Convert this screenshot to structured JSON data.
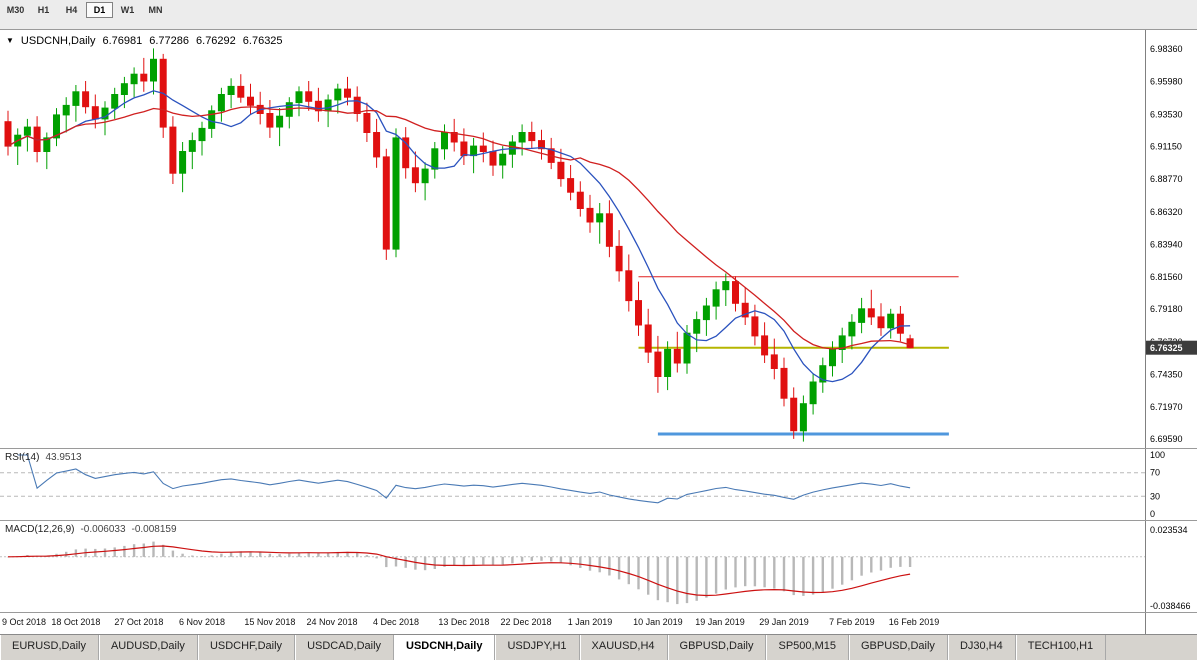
{
  "toolbar": {
    "timeframes": [
      {
        "label": "M30",
        "active": false
      },
      {
        "label": "H1",
        "active": false
      },
      {
        "label": "H4",
        "active": false
      },
      {
        "label": "D1",
        "active": true
      },
      {
        "label": "W1",
        "active": false
      },
      {
        "label": "MN",
        "active": false
      }
    ]
  },
  "chart": {
    "title_symbol": "USDCNH,Daily",
    "ohlc": {
      "open": "6.76981",
      "high": "6.77286",
      "low": "6.76292",
      "close": "6.76325"
    },
    "price_badge": "6.76325",
    "badge_price": 6.76325,
    "ylim": [
      6.6893,
      6.9976
    ],
    "bar_spacing": 9.7,
    "first_x": 8,
    "price_axis_labels": [
      "6.98360",
      "6.95980",
      "6.93530",
      "6.91150",
      "6.88770",
      "6.86320",
      "6.83940",
      "6.81560",
      "6.79180",
      "6.76730",
      "6.74350",
      "6.71970",
      "6.69590"
    ],
    "time_labels": [
      {
        "label": "9 Oct 2018",
        "i": 0
      },
      {
        "label": "18 Oct 2018",
        "i": 7
      },
      {
        "label": "27 Oct 2018",
        "i": 13.5
      },
      {
        "label": "6 Nov 2018",
        "i": 20
      },
      {
        "label": "15 Nov 2018",
        "i": 27
      },
      {
        "label": "24 Nov 2018",
        "i": 33.4
      },
      {
        "label": "4 Dec 2018",
        "i": 40
      },
      {
        "label": "13 Dec 2018",
        "i": 47
      },
      {
        "label": "22 Dec 2018",
        "i": 53.4
      },
      {
        "label": "1 Jan 2019",
        "i": 60
      },
      {
        "label": "10 Jan 2019",
        "i": 67
      },
      {
        "label": "19 Jan 2019",
        "i": 73.4
      },
      {
        "label": "29 Jan 2019",
        "i": 80
      },
      {
        "label": "7 Feb 2019",
        "i": 87
      },
      {
        "label": "16 Feb 2019",
        "i": 93.4
      }
    ],
    "colors": {
      "up": "#00a000",
      "down": "#e01010",
      "ma_fast": "#2a52be",
      "ma_slow": "#d02020",
      "badge_bg": "#3c3c3c",
      "badge_text": "#ffffff"
    },
    "drawn_lines": [
      {
        "name": "resistance-line-red",
        "price": 6.8156,
        "from": 65,
        "to": 98,
        "color": "#e02020",
        "width": 1
      },
      {
        "name": "support-line-yellow",
        "price": 6.7632,
        "from": 65,
        "to": 97,
        "color": "#b5b500",
        "width": 2
      },
      {
        "name": "support-line-blue",
        "price": 6.6996,
        "from": 67,
        "to": 97,
        "color": "#4f97dd",
        "width": 3
      }
    ]
  },
  "chart_data": {
    "type": "candlestick",
    "symbol": "USDCNH",
    "timeframe": "Daily",
    "title": "USDCNH,Daily",
    "ylim": [
      6.6893,
      6.9976
    ],
    "ohlc_format": [
      "open",
      "high",
      "low",
      "close"
    ],
    "moving_averages": [
      {
        "period": 8,
        "color_key": "ma_fast"
      },
      {
        "period": 20,
        "color_key": "ma_slow"
      }
    ],
    "candles": [
      [
        6.93,
        6.938,
        6.905,
        6.912
      ],
      [
        6.912,
        6.925,
        6.898,
        6.92
      ],
      [
        6.92,
        6.932,
        6.908,
        6.926
      ],
      [
        6.926,
        6.934,
        6.9,
        6.908
      ],
      [
        6.908,
        6.922,
        6.895,
        6.918
      ],
      [
        6.918,
        6.94,
        6.912,
        6.935
      ],
      [
        6.935,
        6.948,
        6.922,
        6.942
      ],
      [
        6.942,
        6.957,
        6.93,
        6.952
      ],
      [
        6.952,
        6.96,
        6.936,
        6.941
      ],
      [
        6.941,
        6.95,
        6.925,
        6.932
      ],
      [
        6.932,
        6.945,
        6.92,
        6.94
      ],
      [
        6.94,
        6.955,
        6.932,
        6.95
      ],
      [
        6.95,
        6.963,
        6.94,
        6.958
      ],
      [
        6.958,
        6.97,
        6.948,
        6.965
      ],
      [
        6.965,
        6.977,
        6.952,
        6.96
      ],
      [
        6.96,
        6.984,
        6.95,
        6.976
      ],
      [
        6.976,
        6.98,
        6.918,
        6.926
      ],
      [
        6.926,
        6.934,
        6.884,
        6.892
      ],
      [
        6.892,
        6.915,
        6.878,
        6.908
      ],
      [
        6.908,
        6.922,
        6.895,
        6.916
      ],
      [
        6.916,
        6.93,
        6.905,
        6.925
      ],
      [
        6.925,
        6.942,
        6.918,
        6.938
      ],
      [
        6.938,
        6.955,
        6.93,
        6.95
      ],
      [
        6.95,
        6.962,
        6.94,
        6.956
      ],
      [
        6.956,
        6.965,
        6.944,
        6.948
      ],
      [
        6.948,
        6.958,
        6.935,
        6.942
      ],
      [
        6.942,
        6.952,
        6.928,
        6.936
      ],
      [
        6.936,
        6.946,
        6.918,
        6.926
      ],
      [
        6.926,
        6.94,
        6.912,
        6.934
      ],
      [
        6.934,
        6.948,
        6.925,
        6.944
      ],
      [
        6.944,
        6.956,
        6.934,
        6.952
      ],
      [
        6.952,
        6.96,
        6.938,
        6.945
      ],
      [
        6.945,
        6.955,
        6.93,
        6.938
      ],
      [
        6.938,
        6.95,
        6.926,
        6.946
      ],
      [
        6.946,
        6.958,
        6.936,
        6.954
      ],
      [
        6.954,
        6.963,
        6.942,
        6.948
      ],
      [
        6.948,
        6.956,
        6.93,
        6.936
      ],
      [
        6.936,
        6.944,
        6.915,
        6.922
      ],
      [
        6.922,
        6.932,
        6.896,
        6.904
      ],
      [
        6.904,
        6.91,
        6.828,
        6.836
      ],
      [
        6.836,
        6.925,
        6.83,
        6.918
      ],
      [
        6.918,
        6.926,
        6.888,
        6.896
      ],
      [
        6.896,
        6.908,
        6.878,
        6.885
      ],
      [
        6.885,
        6.9,
        6.872,
        6.895
      ],
      [
        6.895,
        6.915,
        6.888,
        6.91
      ],
      [
        6.91,
        6.928,
        6.902,
        6.922
      ],
      [
        6.922,
        6.932,
        6.908,
        6.915
      ],
      [
        6.915,
        6.925,
        6.898,
        6.905
      ],
      [
        6.905,
        6.918,
        6.892,
        6.912
      ],
      [
        6.912,
        6.922,
        6.9,
        6.908
      ],
      [
        6.908,
        6.916,
        6.89,
        6.898
      ],
      [
        6.898,
        6.912,
        6.888,
        6.906
      ],
      [
        6.906,
        6.92,
        6.896,
        6.915
      ],
      [
        6.915,
        6.928,
        6.905,
        6.922
      ],
      [
        6.922,
        6.93,
        6.91,
        6.916
      ],
      [
        6.916,
        6.924,
        6.902,
        6.91
      ],
      [
        6.91,
        6.918,
        6.895,
        6.9
      ],
      [
        6.9,
        6.91,
        6.882,
        6.888
      ],
      [
        6.888,
        6.898,
        6.872,
        6.878
      ],
      [
        6.878,
        6.886,
        6.86,
        6.866
      ],
      [
        6.866,
        6.876,
        6.848,
        6.856
      ],
      [
        6.856,
        6.87,
        6.84,
        6.862
      ],
      [
        6.862,
        6.872,
        6.83,
        6.838
      ],
      [
        6.838,
        6.85,
        6.812,
        6.82
      ],
      [
        6.82,
        6.832,
        6.79,
        6.798
      ],
      [
        6.798,
        6.812,
        6.772,
        6.78
      ],
      [
        6.78,
        6.792,
        6.752,
        6.76
      ],
      [
        6.76,
        6.772,
        6.73,
        6.742
      ],
      [
        6.742,
        6.768,
        6.732,
        6.762
      ],
      [
        6.762,
        6.775,
        6.745,
        6.752
      ],
      [
        6.752,
        6.78,
        6.744,
        6.774
      ],
      [
        6.774,
        6.79,
        6.76,
        6.784
      ],
      [
        6.784,
        6.8,
        6.772,
        6.794
      ],
      [
        6.794,
        6.812,
        6.784,
        6.806
      ],
      [
        6.806,
        6.818,
        6.794,
        6.812
      ],
      [
        6.812,
        6.816,
        6.79,
        6.796
      ],
      [
        6.796,
        6.808,
        6.78,
        6.786
      ],
      [
        6.786,
        6.795,
        6.765,
        6.772
      ],
      [
        6.772,
        6.782,
        6.752,
        6.758
      ],
      [
        6.758,
        6.77,
        6.74,
        6.748
      ],
      [
        6.748,
        6.756,
        6.72,
        6.726
      ],
      [
        6.726,
        6.734,
        6.696,
        6.702
      ],
      [
        6.702,
        6.728,
        6.694,
        6.722
      ],
      [
        6.722,
        6.744,
        6.714,
        6.738
      ],
      [
        6.738,
        6.756,
        6.73,
        6.75
      ],
      [
        6.75,
        6.768,
        6.742,
        6.762
      ],
      [
        6.762,
        6.778,
        6.752,
        6.772
      ],
      [
        6.772,
        6.788,
        6.762,
        6.782
      ],
      [
        6.782,
        6.8,
        6.774,
        6.792
      ],
      [
        6.792,
        6.806,
        6.78,
        6.786
      ],
      [
        6.786,
        6.796,
        6.772,
        6.778
      ],
      [
        6.778,
        6.792,
        6.77,
        6.788
      ],
      [
        6.788,
        6.794,
        6.768,
        6.774
      ],
      [
        6.76981,
        6.77286,
        6.76292,
        6.76325
      ]
    ]
  },
  "rsi": {
    "label": "RSI(14)",
    "value": "43.9513",
    "period": 14,
    "levels": [
      "100",
      "70",
      "30",
      "0"
    ],
    "line_color": "#4a7ab5"
  },
  "macd": {
    "label": "MACD(12,26,9)",
    "value_main": "-0.006033",
    "value_signal": "-0.008159",
    "fast": 12,
    "slow": 26,
    "signal": 9,
    "axis_max": "0.023534",
    "axis_min": "-0.038466",
    "hist_color": "#b8b8b8",
    "signal_color": "#cc1111",
    "ylim": [
      -0.045,
      0.028
    ]
  },
  "tabs": [
    {
      "label": "EURUSD,Daily",
      "active": false
    },
    {
      "label": "AUDUSD,Daily",
      "active": false
    },
    {
      "label": "USDCHF,Daily",
      "active": false
    },
    {
      "label": "USDCAD,Daily",
      "active": false
    },
    {
      "label": "USDCNH,Daily",
      "active": true
    },
    {
      "label": "USDJPY,H1",
      "active": false
    },
    {
      "label": "XAUUSD,H4",
      "active": false
    },
    {
      "label": "GBPUSD,Daily",
      "active": false
    },
    {
      "label": "SP500,M15",
      "active": false
    },
    {
      "label": "GBPUSD,Daily",
      "active": false
    },
    {
      "label": "DJ30,H4",
      "active": false
    },
    {
      "label": "TECH100,H1",
      "active": false
    }
  ]
}
